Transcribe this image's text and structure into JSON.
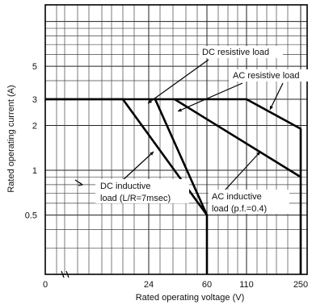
{
  "chart_data": {
    "type": "line",
    "xlabel": "Rated operating voltage (V)",
    "ylabel": "Rated operating current (A)",
    "x_scale": "nonlinear",
    "y_scale": "log",
    "xlim": [
      0,
      250
    ],
    "ylim": [
      0.2,
      10
    ],
    "grid": true,
    "x_ticks": [
      {
        "value": 0,
        "label": "0"
      },
      {
        "value": 24,
        "label": "24"
      },
      {
        "value": 60,
        "label": "60"
      },
      {
        "value": 110,
        "label": "110"
      },
      {
        "value": 250,
        "label": "250"
      }
    ],
    "y_ticks": [
      {
        "value": 0.5,
        "label": "0.5"
      },
      {
        "value": 1,
        "label": "1"
      },
      {
        "value": 2,
        "label": "2"
      },
      {
        "value": 3,
        "label": "3"
      },
      {
        "value": 5,
        "label": "5"
      }
    ],
    "series": [
      {
        "name": "DC resistive load",
        "points": [
          [
            0,
            3
          ],
          [
            18,
            3
          ],
          [
            60,
            0.5
          ],
          [
            60,
            0.2
          ]
        ]
      },
      {
        "name": "AC resistive load",
        "points": [
          [
            0,
            3
          ],
          [
            110,
            3
          ],
          [
            250,
            1.9
          ],
          [
            250,
            0.2
          ]
        ]
      },
      {
        "name": "DC inductive load (L/R=7msec)",
        "points": [
          [
            28,
            3
          ],
          [
            60,
            0.5
          ]
        ]
      },
      {
        "name": "AC inductive load (p.f.=0.4)",
        "points": [
          [
            40,
            3
          ],
          [
            250,
            0.9
          ]
        ]
      }
    ],
    "annotations": [
      {
        "id": "dc-resistive",
        "lines": [
          "DC resistive load"
        ]
      },
      {
        "id": "ac-resistive",
        "lines": [
          "AC resistive load"
        ]
      },
      {
        "id": "dc-inductive",
        "lines": [
          "DC inductive",
          "load (L/R=7msec)"
        ]
      },
      {
        "id": "ac-inductive",
        "lines": [
          "AC inductive",
          "load (p.f.=0.4)"
        ]
      }
    ]
  }
}
